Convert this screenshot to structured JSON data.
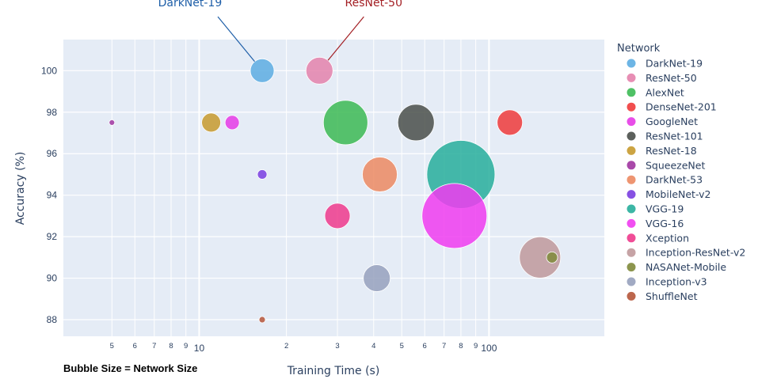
{
  "chart_data": {
    "type": "scatter",
    "subtype": "bubble",
    "xlabel": "Training Time (s)",
    "ylabel": "Accuracy (%)",
    "x_scale": "log",
    "xlim": [
      3.4,
      250
    ],
    "ylim": [
      87.2,
      101.5
    ],
    "x_major_ticks": [
      10,
      100
    ],
    "x_minor_ticks": [
      5,
      6,
      7,
      8,
      9,
      20,
      30,
      40,
      50,
      60,
      70,
      80,
      90
    ],
    "x_tick_labels": [
      "5",
      "6",
      "7",
      "8",
      "9",
      "10",
      "2",
      "3",
      "4",
      "5",
      "6",
      "7",
      "8",
      "9",
      "100"
    ],
    "y_ticks": [
      88,
      90,
      92,
      94,
      96,
      98,
      100
    ],
    "legend_title": "Network",
    "size_note": "Bubble Size = Network Size",
    "series": [
      {
        "name": "DarkNet-19",
        "x": 16.5,
        "y": 100,
        "size": 15,
        "color": "#5dade2"
      },
      {
        "name": "ResNet-50",
        "x": 26,
        "y": 100,
        "size": 17,
        "color": "#e482ac"
      },
      {
        "name": "AlexNet",
        "x": 32,
        "y": 97.5,
        "size": 28,
        "color": "#3cba54"
      },
      {
        "name": "DenseNet-201",
        "x": 118,
        "y": 97.5,
        "size": 16,
        "color": "#ef3b3b"
      },
      {
        "name": "GoogleNet",
        "x": 13,
        "y": 97.5,
        "size": 9,
        "color": "#e63be6"
      },
      {
        "name": "ResNet-101",
        "x": 56,
        "y": 97.5,
        "size": 23,
        "color": "#4a4f4a"
      },
      {
        "name": "ResNet-18",
        "x": 11,
        "y": 97.5,
        "size": 12,
        "color": "#c79a2e"
      },
      {
        "name": "SqueezeNet",
        "x": 5,
        "y": 97.5,
        "size": 3.5,
        "color": "#a035a0"
      },
      {
        "name": "DarkNet-53",
        "x": 42,
        "y": 95,
        "size": 22,
        "color": "#ec8a62"
      },
      {
        "name": "MobileNet-v2",
        "x": 16.5,
        "y": 95,
        "size": 6,
        "color": "#7a3ee0"
      },
      {
        "name": "VGG-19",
        "x": 80,
        "y": 95,
        "size": 43,
        "color": "#27ae9b"
      },
      {
        "name": "VGG-16",
        "x": 76,
        "y": 93,
        "size": 41,
        "color": "#f03cf0"
      },
      {
        "name": "Xception",
        "x": 30,
        "y": 93,
        "size": 16,
        "color": "#ee3a8c"
      },
      {
        "name": "Inception-ResNet-v2",
        "x": 150,
        "y": 91,
        "size": 26,
        "color": "#c0999b"
      },
      {
        "name": "NASANet-Mobile",
        "x": 165,
        "y": 91,
        "size": 7,
        "color": "#7f8a3b"
      },
      {
        "name": "Inception-v3",
        "x": 41,
        "y": 90,
        "size": 17,
        "color": "#97a1bd"
      },
      {
        "name": "ShuffleNet",
        "x": 16.5,
        "y": 88,
        "size": 4,
        "color": "#b5553a"
      }
    ],
    "annotations": [
      {
        "text": "DarkNet-19",
        "target": "DarkNet-19",
        "color": "#1f5fa8",
        "label_x": 9.3,
        "label_y": 103.1,
        "line_from": [
          11.6,
          102.6
        ]
      },
      {
        "text": "ResNet-50",
        "target": "ResNet-50",
        "color": "#a31f24",
        "label_x": 40,
        "label_y": 103.1,
        "line_from": [
          37,
          102.6
        ]
      }
    ]
  }
}
